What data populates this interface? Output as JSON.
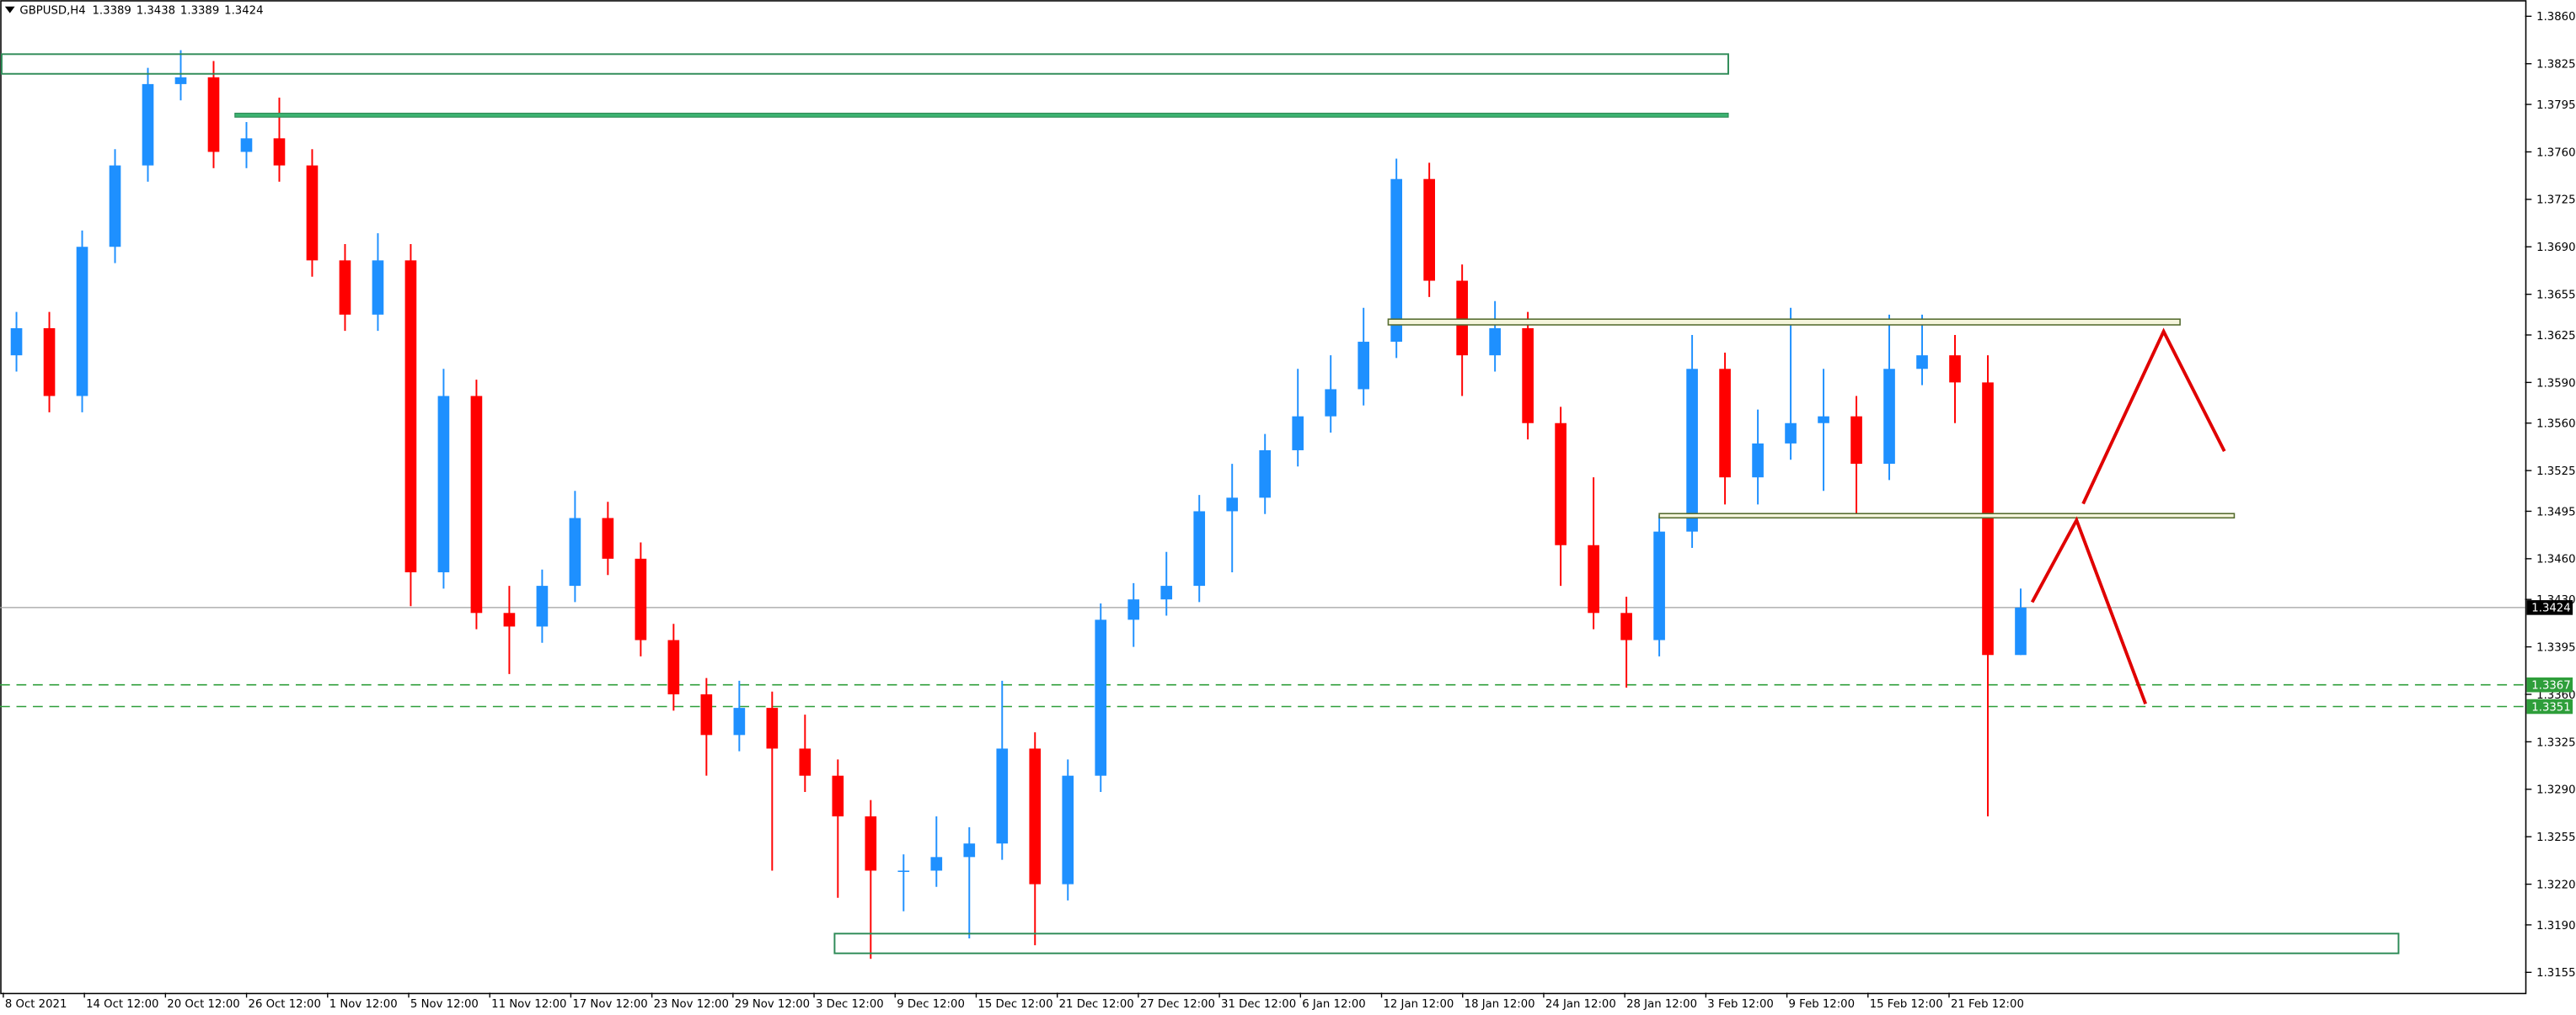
{
  "chart_data": {
    "type": "candlestick",
    "symbol": "GBPUSD,H4",
    "ylim": [
      1.314,
      1.3872
    ],
    "yticks": [
      {
        "value": 1.386,
        "label": "1.3860"
      },
      1.3825,
      1.3795,
      {
        "value": 1.376,
        "label": "1.3760"
      },
      1.3725,
      {
        "value": 1.369,
        "label": "1.3690"
      },
      1.3655,
      1.3625,
      {
        "value": 1.359,
        "label": "1.3590"
      },
      {
        "value": 1.356,
        "label": "1.3560"
      },
      1.3525,
      1.3495,
      {
        "value": 1.346,
        "label": "1.3460"
      },
      {
        "value": 1.343,
        "label": "1.3430"
      },
      1.3395,
      {
        "value": 1.336,
        "label": "1.3360"
      },
      1.3325,
      {
        "value": 1.329,
        "label": "1.3290"
      },
      1.3255,
      {
        "value": 1.322,
        "label": "1.3220"
      },
      {
        "value": 1.319,
        "label": "1.3190"
      },
      1.3155
    ],
    "x_labels": [
      "8 Oct 2021",
      "14 Oct 12:00",
      "20 Oct 12:00",
      "26 Oct 12:00",
      "1 Nov 12:00",
      "5 Nov 12:00",
      "11 Nov 12:00",
      "17 Nov 12:00",
      "23 Nov 12:00",
      "29 Nov 12:00",
      "3 Dec 12:00",
      "9 Dec 12:00",
      "15 Dec 12:00",
      "21 Dec 12:00",
      "27 Dec 12:00",
      "31 Dec 12:00",
      "6 Jan 12:00",
      "12 Jan 12:00",
      "18 Jan 12:00",
      "24 Jan 12:00",
      "28 Jan 12:00",
      "3 Feb 12:00",
      "9 Feb 12:00",
      "15 Feb 12:00",
      "21 Feb 12:00"
    ],
    "candles": {
      "open": [
        1.361,
        1.363,
        1.358,
        1.369,
        1.375,
        1.381,
        1.3815,
        1.376,
        1.377,
        1.375,
        1.368,
        1.364,
        1.368,
        1.345,
        1.358,
        1.342,
        1.341,
        1.344,
        1.349,
        1.346,
        1.34,
        1.336,
        1.333,
        1.335,
        1.332,
        1.33,
        1.327,
        1.323,
        1.323,
        1.324,
        1.325,
        1.332,
        1.322,
        1.33,
        1.3415,
        1.343,
        1.344,
        1.3495,
        1.3505,
        1.354,
        1.3565,
        1.3585,
        1.362,
        1.374,
        1.3665,
        1.361,
        1.363,
        1.356,
        1.347,
        1.342,
        1.34,
        1.348,
        1.36,
        1.352,
        1.3545,
        1.356,
        1.3565,
        1.353,
        1.36,
        1.361,
        1.359,
        1.3389
      ],
      "high": [
        1.3642,
        1.3642,
        1.3702,
        1.3762,
        1.3822,
        1.3835,
        1.3827,
        1.3782,
        1.38,
        1.3762,
        1.3692,
        1.37,
        1.3692,
        1.36,
        1.3592,
        1.344,
        1.3452,
        1.351,
        1.3502,
        1.3472,
        1.3412,
        1.3372,
        1.337,
        1.3362,
        1.3345,
        1.3312,
        1.3282,
        1.3242,
        1.327,
        1.3262,
        1.337,
        1.3332,
        1.3312,
        1.3427,
        1.3442,
        1.3465,
        1.3507,
        1.353,
        1.3552,
        1.36,
        1.361,
        1.3645,
        1.3755,
        1.3752,
        1.3677,
        1.365,
        1.3642,
        1.3572,
        1.352,
        1.3432,
        1.3492,
        1.3625,
        1.3612,
        1.357,
        1.3645,
        1.36,
        1.358,
        1.364,
        1.364,
        1.3625,
        1.361,
        1.3438
      ],
      "low": [
        1.3598,
        1.3568,
        1.3568,
        1.3678,
        1.3738,
        1.3798,
        1.3748,
        1.3748,
        1.3738,
        1.3668,
        1.3628,
        1.3628,
        1.3425,
        1.3438,
        1.3408,
        1.3375,
        1.3398,
        1.3428,
        1.3448,
        1.3388,
        1.3348,
        1.33,
        1.3318,
        1.323,
        1.3288,
        1.321,
        1.3165,
        1.32,
        1.3218,
        1.318,
        1.3238,
        1.3175,
        1.3208,
        1.3288,
        1.3395,
        1.3418,
        1.3428,
        1.345,
        1.3493,
        1.3528,
        1.3553,
        1.3573,
        1.3608,
        1.3653,
        1.358,
        1.3598,
        1.3548,
        1.344,
        1.3408,
        1.3365,
        1.3388,
        1.3468,
        1.35,
        1.35,
        1.3533,
        1.351,
        1.349,
        1.3518,
        1.3588,
        1.356,
        1.327,
        1.3389
      ],
      "close": [
        1.363,
        1.358,
        1.369,
        1.375,
        1.381,
        1.3815,
        1.376,
        1.377,
        1.375,
        1.368,
        1.364,
        1.368,
        1.345,
        1.358,
        1.342,
        1.341,
        1.344,
        1.349,
        1.346,
        1.34,
        1.336,
        1.333,
        1.335,
        1.332,
        1.33,
        1.327,
        1.323,
        1.323,
        1.324,
        1.325,
        1.332,
        1.322,
        1.33,
        1.3415,
        1.343,
        1.344,
        1.3495,
        1.3505,
        1.354,
        1.3565,
        1.3585,
        1.362,
        1.374,
        1.3665,
        1.361,
        1.363,
        1.356,
        1.347,
        1.342,
        1.34,
        1.348,
        1.36,
        1.352,
        1.3545,
        1.356,
        1.3565,
        1.353,
        1.36,
        1.361,
        1.359,
        1.3389,
        1.3424
      ]
    },
    "up_color": "#1e90ff",
    "down_color": "#ff0000",
    "levels": [
      {
        "value": 1.3367,
        "color": "#2e9e3a"
      },
      {
        "value": 1.3351,
        "color": "#2e9e3a"
      }
    ],
    "price_color": "#000000"
  }
}
